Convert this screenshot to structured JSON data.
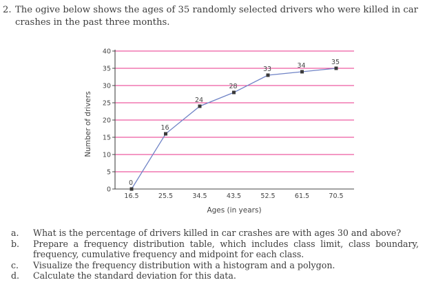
{
  "question": {
    "number": "2.",
    "text": "The ogive below shows the ages of 35 randomly selected drivers who were killed in car crashes in the past three months."
  },
  "chart_data": {
    "type": "line",
    "title": "",
    "xlabel": "Ages (in years)",
    "ylabel": "Number of drivers",
    "x": [
      16.5,
      25.5,
      34.5,
      43.5,
      52.5,
      61.5,
      70.5
    ],
    "x_tick_labels": [
      "16.5",
      "25.5",
      "34.5",
      "43.5",
      "52.5",
      "61.5",
      "70.5"
    ],
    "y_ticks": [
      0,
      5,
      10,
      15,
      20,
      25,
      30,
      35,
      40
    ],
    "y_tick_labels": [
      "0",
      "5",
      "10",
      "15",
      "20",
      "25",
      "30",
      "35",
      "40"
    ],
    "series": [
      {
        "values": [
          0,
          16,
          24,
          28,
          33,
          34,
          35
        ],
        "labels": [
          "0",
          "16",
          "24",
          "28",
          "33",
          "34",
          "35"
        ]
      }
    ],
    "xlim": [
      16.5,
      70.5
    ],
    "ylim": [
      0,
      40
    ],
    "grid": "horizontal",
    "colors": {
      "line": "#6f83c6",
      "marker": "#3a3a3a",
      "grid": "#e8318a",
      "axis": "#444444"
    }
  },
  "questions": [
    {
      "letter": "a.",
      "text": "What is the percentage of drivers killed in car crashes are with ages 30 and above?"
    },
    {
      "letter": "b.",
      "text": "Prepare a frequency distribution table, which includes class limit, class boundary, frequency, cumulative frequency and midpoint for each class."
    },
    {
      "letter": "c.",
      "text": "Visualize the frequency distribution with a histogram and a polygon."
    },
    {
      "letter": "d.",
      "text": "Calculate the standard deviation for this data."
    }
  ]
}
